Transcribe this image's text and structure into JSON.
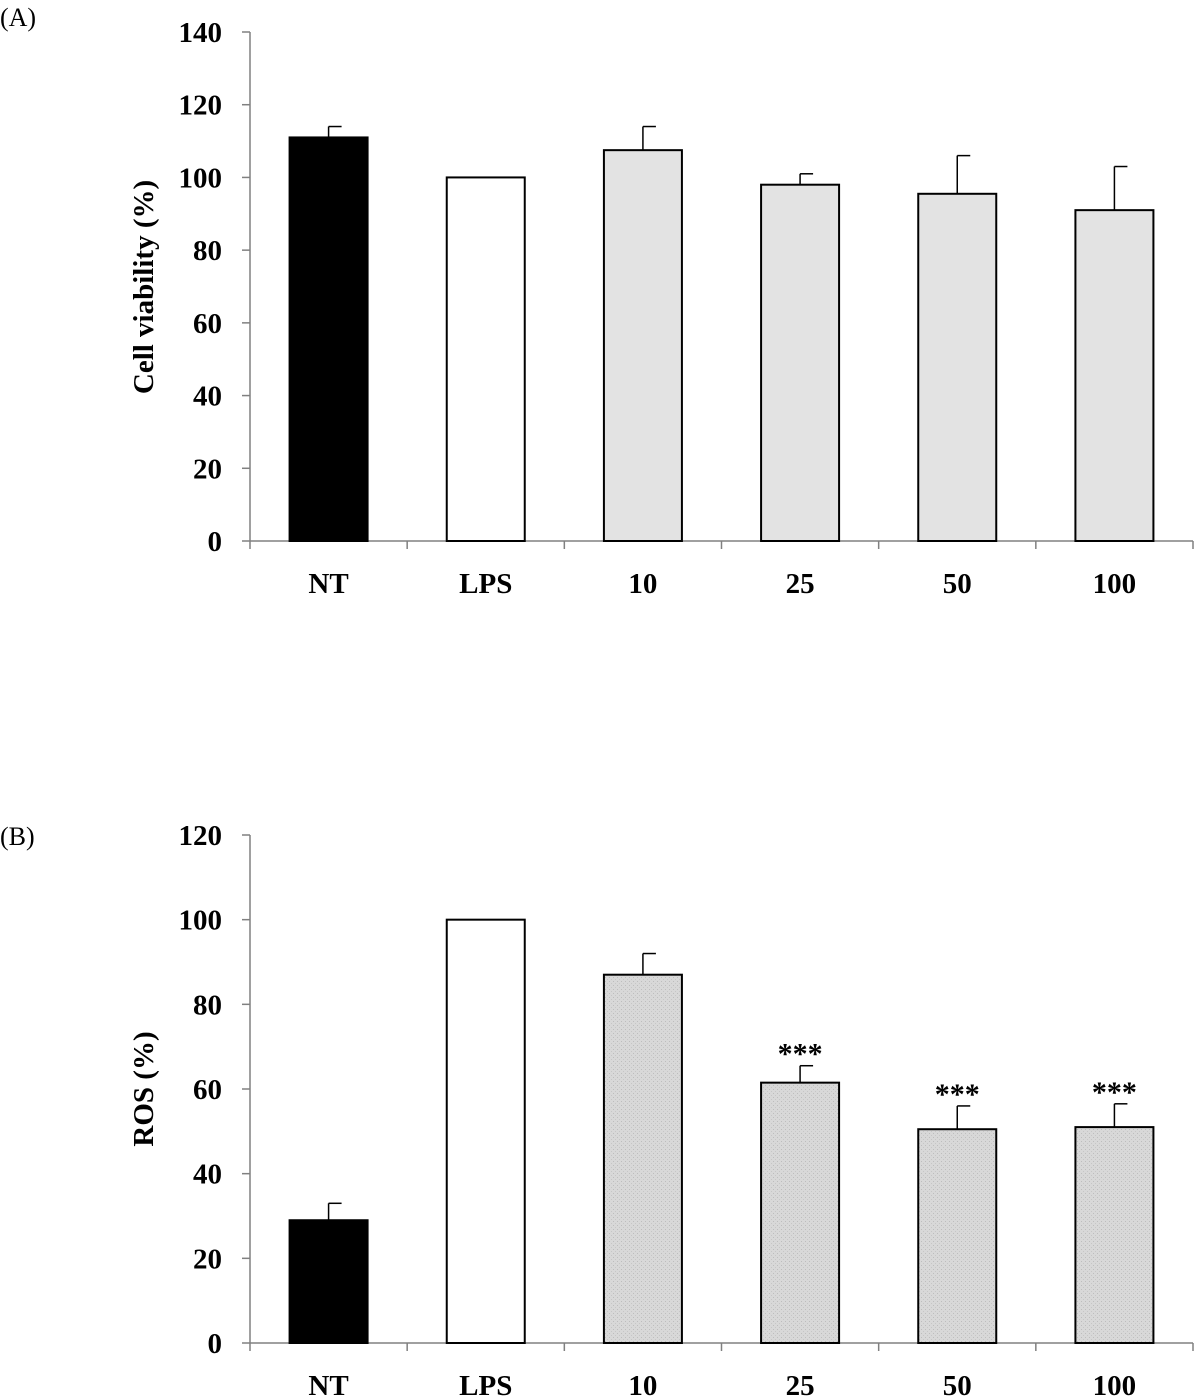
{
  "colors": {
    "NT": "#000000",
    "LPS": "#ffffff",
    "sample": "#e3e3e3",
    "sample_dotted": "#d9d9d9",
    "outline": "#000000",
    "axis": "#808080"
  },
  "chart_data": [
    {
      "panel_label": "(A)",
      "type": "bar",
      "ylabel": "Cell viability (%)",
      "xlabel": "",
      "categories": [
        "NT",
        "LPS",
        "10",
        "25",
        "50",
        "100"
      ],
      "values": [
        111,
        100,
        107.5,
        98,
        95.5,
        91
      ],
      "errors": [
        3,
        0,
        6.5,
        3,
        10.5,
        12
      ],
      "significance": [
        "",
        "",
        "",
        "",
        "",
        ""
      ],
      "ylim": [
        0,
        140
      ],
      "yticks": [
        0,
        20,
        40,
        60,
        80,
        100,
        120,
        140
      ],
      "grid": false,
      "fill_keys": [
        "NT",
        "LPS",
        "sample",
        "sample",
        "sample",
        "sample"
      ]
    },
    {
      "panel_label": "(B)",
      "type": "bar",
      "ylabel": "ROS (%)",
      "xlabel": "",
      "categories": [
        "NT",
        "LPS",
        "10",
        "25",
        "50",
        "100"
      ],
      "values": [
        29,
        100,
        87,
        61.5,
        50.5,
        51
      ],
      "errors": [
        4,
        0,
        5,
        4,
        5.5,
        5.5
      ],
      "significance": [
        "",
        "",
        "",
        "***",
        "***",
        "***"
      ],
      "ylim": [
        0,
        120
      ],
      "yticks": [
        0,
        20,
        40,
        60,
        80,
        100,
        120
      ],
      "grid": false,
      "fill_keys": [
        "NT",
        "LPS",
        "sample_dotted",
        "sample_dotted",
        "sample_dotted",
        "sample_dotted"
      ]
    }
  ]
}
